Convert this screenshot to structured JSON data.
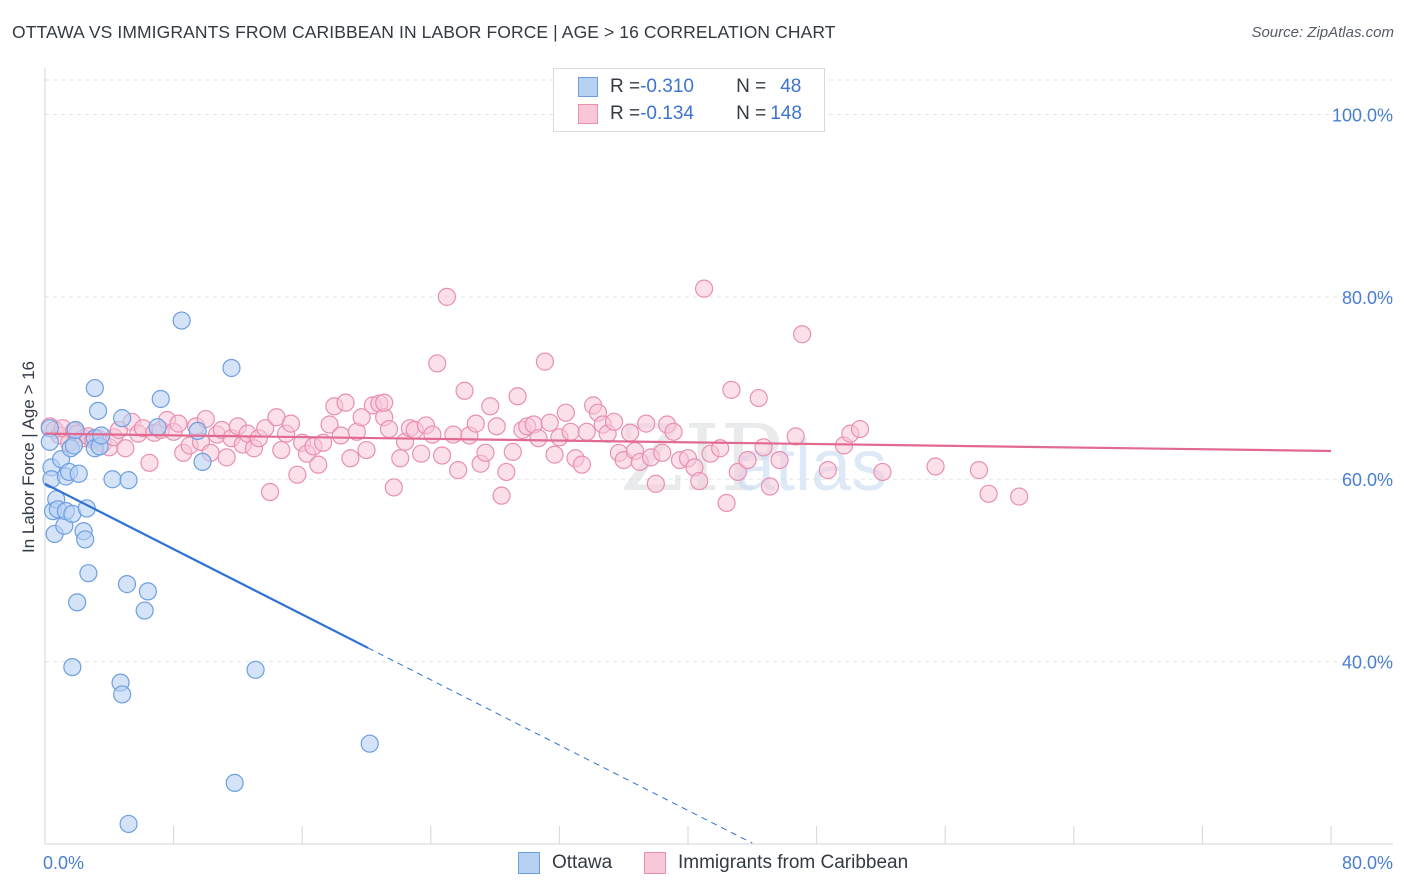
{
  "header": {
    "title": "OTTAWA VS IMMIGRANTS FROM CARIBBEAN IN LABOR FORCE | AGE > 16 CORRELATION CHART",
    "source": "Source: ZipAtlas.com"
  },
  "legend": {
    "rows": [
      {
        "r_label": "R = ",
        "r_value": "-0.310",
        "n_label": "N = ",
        "n_value": "48"
      },
      {
        "r_label": "R = ",
        "r_value": "-0.134",
        "n_label": "N = ",
        "n_value": "148"
      }
    ],
    "bottom": [
      "Ottawa",
      "Immigrants from Caribbean"
    ]
  },
  "colors": {
    "ottawa_fill": "#b7d1f3",
    "ottawa_stroke": "#6d9fe0",
    "ottawa_line": "#2f72d4",
    "carib_fill": "#f8c7d8",
    "carib_stroke": "#e98fb1",
    "carib_line": "#e2698f",
    "tick_label": "#4a7fd0"
  },
  "chart_data": {
    "type": "scatter",
    "title": "OTTAWA VS IMMIGRANTS FROM CARIBBEAN IN LABOR FORCE | AGE > 16 CORRELATION CHART",
    "xlabel": "",
    "ylabel": "In Labor Force | Age > 16",
    "xlim": [
      0,
      80
    ],
    "ylim": [
      20,
      104
    ],
    "x_tick_labels": [
      "0.0%",
      "80.0%"
    ],
    "y_ticks": [
      100,
      80,
      60,
      40
    ],
    "y_tick_labels": [
      "100.0%",
      "80.0%",
      "60.0%",
      "40.0%"
    ],
    "watermark": "ZIPatlas",
    "series": [
      {
        "name": "Ottawa",
        "r": -0.31,
        "n": 48,
        "trend": {
          "x0": 0,
          "y0": 59.5,
          "x1": 20.1,
          "y1": 41.5,
          "dash_to_x": 44.0
        },
        "points": [
          [
            0.3,
            65.6
          ],
          [
            0.3,
            64.1
          ],
          [
            0.4,
            61.3
          ],
          [
            0.4,
            60.0
          ],
          [
            0.5,
            56.5
          ],
          [
            0.6,
            54.0
          ],
          [
            0.7,
            57.8
          ],
          [
            0.8,
            56.7
          ],
          [
            1.0,
            62.2
          ],
          [
            1.2,
            54.9
          ],
          [
            1.3,
            56.5
          ],
          [
            1.3,
            60.3
          ],
          [
            1.5,
            60.8
          ],
          [
            1.6,
            63.4
          ],
          [
            1.7,
            56.2
          ],
          [
            1.7,
            39.4
          ],
          [
            1.8,
            63.7
          ],
          [
            1.9,
            65.4
          ],
          [
            2.0,
            46.5
          ],
          [
            2.1,
            60.6
          ],
          [
            2.4,
            54.3
          ],
          [
            2.5,
            53.4
          ],
          [
            2.6,
            56.8
          ],
          [
            2.7,
            49.7
          ],
          [
            3.1,
            70.0
          ],
          [
            3.1,
            64.5
          ],
          [
            3.1,
            63.4
          ],
          [
            3.3,
            67.5
          ],
          [
            3.4,
            63.6
          ],
          [
            3.5,
            64.8
          ],
          [
            4.2,
            60.0
          ],
          [
            4.8,
            66.7
          ],
          [
            4.7,
            37.7
          ],
          [
            4.8,
            36.4
          ],
          [
            5.1,
            48.5
          ],
          [
            5.2,
            22.2
          ],
          [
            5.2,
            59.9
          ],
          [
            6.2,
            45.6
          ],
          [
            6.4,
            47.7
          ],
          [
            7.2,
            68.8
          ],
          [
            8.5,
            77.4
          ],
          [
            9.5,
            65.3
          ],
          [
            9.8,
            61.9
          ],
          [
            11.6,
            72.2
          ],
          [
            11.8,
            26.7
          ],
          [
            13.1,
            39.1
          ],
          [
            20.2,
            31.0
          ],
          [
            7.0,
            65.7
          ]
        ]
      },
      {
        "name": "Immigrants from Caribbean",
        "r": -0.134,
        "n": 148,
        "trend": {
          "x0": 0,
          "y0": 65.0,
          "x1": 80,
          "y1": 63.1
        },
        "points": [
          [
            0.3,
            65.8
          ],
          [
            0.6,
            65.4
          ],
          [
            0.9,
            64.8
          ],
          [
            1.1,
            65.6
          ],
          [
            1.5,
            64.0
          ],
          [
            1.8,
            65.3
          ],
          [
            2.0,
            65.0
          ],
          [
            2.4,
            64.5
          ],
          [
            2.7,
            64.7
          ],
          [
            3.0,
            64.3
          ],
          [
            3.3,
            64.5
          ],
          [
            3.6,
            63.9
          ],
          [
            4.0,
            63.5
          ],
          [
            4.3,
            64.6
          ],
          [
            4.6,
            65.4
          ],
          [
            5.0,
            63.4
          ],
          [
            5.4,
            66.3
          ],
          [
            5.8,
            65.0
          ],
          [
            6.1,
            65.6
          ],
          [
            6.5,
            61.8
          ],
          [
            6.8,
            65.1
          ],
          [
            7.2,
            65.4
          ],
          [
            7.6,
            66.5
          ],
          [
            8.0,
            65.2
          ],
          [
            8.3,
            66.1
          ],
          [
            8.6,
            62.9
          ],
          [
            9.0,
            63.7
          ],
          [
            9.4,
            65.8
          ],
          [
            9.7,
            64.1
          ],
          [
            10.0,
            66.6
          ],
          [
            10.3,
            62.9
          ],
          [
            10.7,
            64.9
          ],
          [
            11.0,
            65.4
          ],
          [
            11.3,
            62.4
          ],
          [
            11.6,
            64.5
          ],
          [
            12.0,
            65.8
          ],
          [
            12.3,
            63.8
          ],
          [
            12.6,
            65.0
          ],
          [
            13.0,
            63.4
          ],
          [
            13.3,
            64.5
          ],
          [
            13.7,
            65.6
          ],
          [
            14.0,
            58.6
          ],
          [
            14.4,
            66.8
          ],
          [
            14.7,
            63.2
          ],
          [
            15.0,
            65.0
          ],
          [
            15.3,
            66.1
          ],
          [
            15.7,
            60.5
          ],
          [
            16.0,
            64.0
          ],
          [
            16.3,
            62.8
          ],
          [
            16.7,
            63.6
          ],
          [
            17.0,
            61.6
          ],
          [
            17.3,
            64.0
          ],
          [
            17.7,
            66.0
          ],
          [
            18.0,
            68.0
          ],
          [
            18.4,
            64.8
          ],
          [
            18.7,
            68.4
          ],
          [
            19.0,
            62.3
          ],
          [
            19.4,
            65.2
          ],
          [
            19.7,
            66.8
          ],
          [
            20.0,
            63.2
          ],
          [
            20.4,
            68.1
          ],
          [
            20.8,
            68.3
          ],
          [
            21.1,
            66.8
          ],
          [
            21.4,
            65.5
          ],
          [
            21.7,
            59.1
          ],
          [
            22.1,
            62.3
          ],
          [
            22.4,
            64.1
          ],
          [
            22.7,
            65.6
          ],
          [
            23.0,
            65.4
          ],
          [
            23.4,
            62.8
          ],
          [
            23.7,
            65.9
          ],
          [
            24.1,
            64.9
          ],
          [
            24.4,
            72.7
          ],
          [
            24.7,
            62.6
          ],
          [
            25.0,
            80.0
          ],
          [
            25.4,
            64.9
          ],
          [
            25.7,
            61.0
          ],
          [
            26.1,
            69.7
          ],
          [
            26.4,
            64.8
          ],
          [
            26.8,
            66.1
          ],
          [
            27.1,
            61.7
          ],
          [
            27.4,
            62.9
          ],
          [
            27.7,
            68.0
          ],
          [
            28.1,
            65.8
          ],
          [
            28.4,
            58.2
          ],
          [
            28.7,
            60.8
          ],
          [
            29.1,
            63.0
          ],
          [
            29.4,
            69.1
          ],
          [
            29.7,
            65.4
          ],
          [
            30.0,
            65.8
          ],
          [
            30.4,
            66.0
          ],
          [
            30.7,
            64.5
          ],
          [
            31.1,
            72.9
          ],
          [
            31.4,
            66.2
          ],
          [
            31.7,
            62.7
          ],
          [
            32.0,
            64.6
          ],
          [
            32.4,
            67.3
          ],
          [
            32.7,
            65.2
          ],
          [
            33.0,
            62.3
          ],
          [
            33.4,
            61.6
          ],
          [
            33.7,
            65.2
          ],
          [
            34.1,
            68.1
          ],
          [
            34.4,
            67.3
          ],
          [
            34.7,
            66.0
          ],
          [
            35.0,
            65.0
          ],
          [
            35.4,
            66.3
          ],
          [
            35.7,
            62.9
          ],
          [
            36.0,
            62.1
          ],
          [
            36.4,
            65.1
          ],
          [
            36.7,
            63.1
          ],
          [
            37.0,
            61.9
          ],
          [
            37.4,
            66.1
          ],
          [
            37.7,
            62.4
          ],
          [
            38.0,
            59.5
          ],
          [
            38.4,
            62.9
          ],
          [
            38.7,
            66.0
          ],
          [
            39.1,
            65.2
          ],
          [
            39.5,
            62.1
          ],
          [
            40.0,
            62.3
          ],
          [
            40.4,
            61.3
          ],
          [
            40.7,
            59.8
          ],
          [
            41.0,
            80.9
          ],
          [
            41.4,
            62.8
          ],
          [
            42.0,
            63.4
          ],
          [
            42.4,
            57.4
          ],
          [
            42.7,
            69.8
          ],
          [
            43.1,
            60.8
          ],
          [
            43.7,
            62.1
          ],
          [
            44.4,
            68.9
          ],
          [
            44.7,
            63.5
          ],
          [
            45.1,
            59.2
          ],
          [
            45.7,
            62.1
          ],
          [
            46.7,
            64.7
          ],
          [
            47.1,
            75.9
          ],
          [
            48.7,
            61.0
          ],
          [
            49.7,
            63.7
          ],
          [
            50.1,
            65.0
          ],
          [
            50.7,
            65.5
          ],
          [
            52.1,
            60.8
          ],
          [
            55.4,
            61.4
          ],
          [
            58.1,
            61.0
          ],
          [
            58.7,
            58.4
          ],
          [
            60.6,
            58.1
          ],
          [
            21.1,
            68.4
          ]
        ]
      }
    ]
  }
}
